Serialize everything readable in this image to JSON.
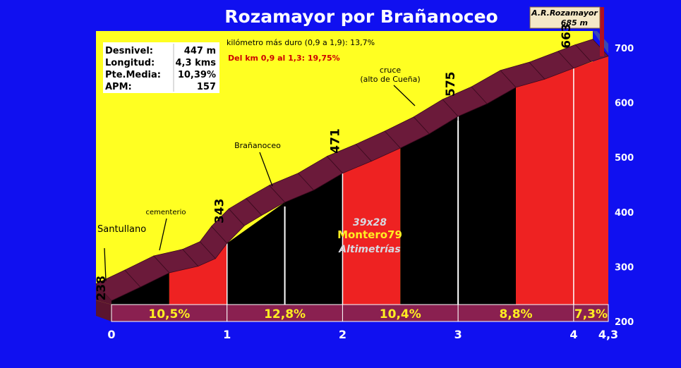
{
  "chart_data": {
    "type": "area",
    "title": "Rozamayor por Brañanoceo",
    "summit": {
      "name": "A.R.Rozamayor",
      "altitude": "685 m"
    },
    "stats": [
      {
        "label": "Desnivel:",
        "value": "447 m"
      },
      {
        "label": "Longitud:",
        "value": "4,3 kms"
      },
      {
        "label": "Pte.Media:",
        "value": "10,39%"
      },
      {
        "label": "APM:",
        "value": "157"
      }
    ],
    "notes": {
      "hardest_km": "kilómetro más duro (0,9 a 1,9): 13,7%",
      "hardest_stretch": "Del km 0,9 al 1,3: 19,75%"
    },
    "credits": {
      "line1": "39x28",
      "line2": "Montero79",
      "line3": "Altimetrías"
    },
    "xlim": [
      0,
      4.3
    ],
    "ylim": [
      200,
      700
    ],
    "x_ticks": [
      {
        "x": 0,
        "label": "0"
      },
      {
        "x": 1,
        "label": "1"
      },
      {
        "x": 2,
        "label": "2"
      },
      {
        "x": 3,
        "label": "3"
      },
      {
        "x": 4,
        "label": "4"
      },
      {
        "x": 4.3,
        "label": "4,3"
      }
    ],
    "y_ticks": [
      {
        "y": 200,
        "label": "200"
      },
      {
        "y": 300,
        "label": "300"
      },
      {
        "y": 400,
        "label": "400"
      },
      {
        "y": 500,
        "label": "500"
      },
      {
        "y": 600,
        "label": "600"
      },
      {
        "y": 700,
        "label": "700"
      }
    ],
    "profile": [
      {
        "x": 0,
        "y": 238
      },
      {
        "x": 0.25,
        "y": 263
      },
      {
        "x": 0.5,
        "y": 289
      },
      {
        "x": 0.75,
        "y": 301
      },
      {
        "x": 0.9,
        "y": 315
      },
      {
        "x": 1.0,
        "y": 343
      },
      {
        "x": 1.15,
        "y": 375
      },
      {
        "x": 1.3,
        "y": 394
      },
      {
        "x": 1.5,
        "y": 418
      },
      {
        "x": 1.75,
        "y": 440
      },
      {
        "x": 2.0,
        "y": 471
      },
      {
        "x": 2.25,
        "y": 493
      },
      {
        "x": 2.5,
        "y": 517
      },
      {
        "x": 2.75,
        "y": 543
      },
      {
        "x": 3.0,
        "y": 575
      },
      {
        "x": 3.25,
        "y": 598
      },
      {
        "x": 3.5,
        "y": 628
      },
      {
        "x": 3.75,
        "y": 643
      },
      {
        "x": 4.0,
        "y": 663
      },
      {
        "x": 4.15,
        "y": 675
      },
      {
        "x": 4.3,
        "y": 685
      }
    ],
    "sub_segments": [
      {
        "x0": 0.0,
        "x1": 0.5,
        "color": "#000000"
      },
      {
        "x0": 0.5,
        "x1": 1.0,
        "color": "#ee2222"
      },
      {
        "x0": 1.0,
        "x1": 1.5,
        "color": "#000000"
      },
      {
        "x0": 1.5,
        "x1": 2.0,
        "color": "#000000"
      },
      {
        "x0": 2.0,
        "x1": 2.5,
        "color": "#ee2222"
      },
      {
        "x0": 2.5,
        "x1": 3.0,
        "color": "#000000"
      },
      {
        "x0": 3.0,
        "x1": 3.5,
        "color": "#000000"
      },
      {
        "x0": 3.5,
        "x1": 4.0,
        "color": "#ee2222"
      },
      {
        "x0": 4.0,
        "x1": 4.3,
        "color": "#ee2222"
      }
    ],
    "km_segments": [
      {
        "x0": 0,
        "x1": 1,
        "grade": "10,5%"
      },
      {
        "x0": 1,
        "x1": 2,
        "grade": "12,8%"
      },
      {
        "x0": 2,
        "x1": 3,
        "grade": "10,4%"
      },
      {
        "x0": 3,
        "x1": 4,
        "grade": "8,8%"
      },
      {
        "x0": 4,
        "x1": 4.3,
        "grade": "7,3%"
      }
    ],
    "altitude_labels": [
      {
        "x": 0,
        "label": "238"
      },
      {
        "x": 1,
        "label": "343"
      },
      {
        "x": 2,
        "label": "471"
      },
      {
        "x": 3,
        "label": "575"
      },
      {
        "x": 4,
        "label": "663"
      }
    ],
    "annotations": [
      {
        "x": 0.0,
        "text": [
          "Santullano"
        ]
      },
      {
        "x": 0.5,
        "text": [
          "cementerio"
        ]
      },
      {
        "x": 1.4,
        "text": [
          "Brañanoceo"
        ]
      },
      {
        "x": 2.85,
        "text": [
          "cruce",
          "(alto de Cueña)"
        ]
      }
    ],
    "colors": {
      "background": "#1010f0",
      "sky": "#ffff22",
      "ribbon": "#6b1a3a",
      "base": "#8a2050",
      "grade_text": "#ffee22",
      "hardest_stretch_text": "#cc0000"
    }
  }
}
